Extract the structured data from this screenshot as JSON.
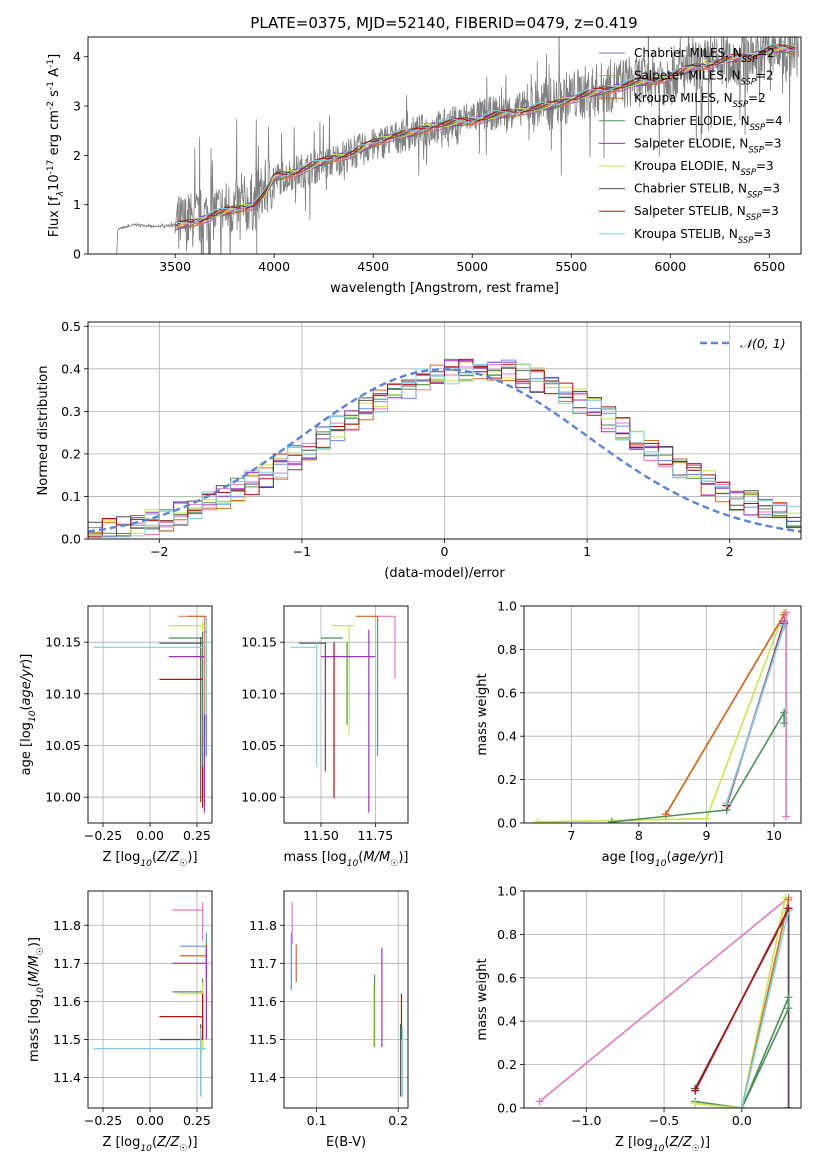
{
  "figure": {
    "title": "PLATE=0375, MJD=52140, FIBERID=0479, z=0.419"
  },
  "colors": {
    "data_gray": "#808080",
    "Chabrier MILES": "#9467bd",
    "Salpeter MILES": "#fa8072",
    "Kroupa MILES": "#d2691e",
    "Chabrier ELODIE": "#4e8f5a",
    "Salpeter ELODIE": "#9a32c8",
    "Kroupa ELODIE": "#c8e650",
    "Chabrier STELIB": "#505050",
    "Salpeter STELIB": "#b01010",
    "Kroupa STELIB": "#80d0e0",
    "gauss": "#5b84d6",
    "pink": "#e377c2",
    "blue": "#6a8ee8"
  },
  "chart_data": [
    {
      "id": "spectrum",
      "type": "line",
      "xlabel": "wavelength [Angstrom, rest frame]",
      "ylabel": "Flux [f$_\\lambda$10$^{-17}$ erg cm$^{-2}$ s$^{-1}$ A$^{-1}$]",
      "xlim": [
        3060,
        6660
      ],
      "ylim": [
        0,
        4.4
      ],
      "xticks": [
        3500,
        4000,
        4500,
        5000,
        5500,
        6000,
        6500
      ],
      "yticks": [
        0,
        1,
        2,
        3,
        4
      ],
      "legend_position": "top-right",
      "legend": [
        {
          "label": "Chabrier MILES, N",
          "sub": "SSP",
          "tail": "=2"
        },
        {
          "label": "Salpeter MILES, N",
          "sub": "SSP",
          "tail": "=2"
        },
        {
          "label": "Kroupa MILES, N",
          "sub": "SSP",
          "tail": "=2"
        },
        {
          "label": "Chabrier ELODIE, N",
          "sub": "SSP",
          "tail": "=4"
        },
        {
          "label": "Salpeter ELODIE, N",
          "sub": "SSP",
          "tail": "=3"
        },
        {
          "label": "Kroupa ELODIE, N",
          "sub": "SSP",
          "tail": "=3"
        },
        {
          "label": "Chabrier STELIB, N",
          "sub": "SSP",
          "tail": "=3"
        },
        {
          "label": "Salpeter STELIB, N",
          "sub": "SSP",
          "tail": "=3"
        },
        {
          "label": "Kroupa STELIB, N",
          "sub": "SSP",
          "tail": "=3"
        }
      ],
      "data_curve": {
        "wavelength": [
          3210,
          3300,
          3400,
          3500,
          3600,
          3700,
          3800,
          3900,
          3950,
          4000,
          4100,
          4200,
          4300,
          4400,
          4500,
          4600,
          4700,
          4800,
          4900,
          5000,
          5100,
          5200,
          5300,
          5400,
          5500,
          5600,
          5700,
          5800,
          5900,
          6000,
          6100,
          6200,
          6300,
          6400,
          6500
        ],
        "flux": [
          0.5,
          0.6,
          0.55,
          0.6,
          0.7,
          0.85,
          0.95,
          1.05,
          1.3,
          1.5,
          1.65,
          1.75,
          1.9,
          2.05,
          2.2,
          2.35,
          2.45,
          2.55,
          2.65,
          2.8,
          2.85,
          2.9,
          3.0,
          3.05,
          3.2,
          3.3,
          3.4,
          3.5,
          3.55,
          3.65,
          3.75,
          3.85,
          3.9,
          4.0,
          4.1
        ]
      },
      "model_curve": {
        "wavelength": [
          3500,
          3600,
          3700,
          3800,
          3900,
          3950,
          4000,
          4100,
          4200,
          4300,
          4400,
          4500,
          4600,
          4700,
          4800,
          4900,
          5000,
          5100,
          5200,
          5300,
          5400,
          5500,
          5600,
          5700,
          5800,
          5900,
          6000,
          6100,
          6200,
          6300,
          6400,
          6500
        ],
        "flux": [
          0.55,
          0.65,
          0.8,
          0.9,
          1.0,
          1.2,
          1.55,
          1.65,
          1.8,
          1.95,
          2.05,
          2.25,
          2.4,
          2.45,
          2.6,
          2.65,
          2.7,
          2.8,
          2.85,
          2.95,
          3.0,
          3.15,
          3.25,
          3.35,
          3.45,
          3.5,
          3.6,
          3.75,
          3.85,
          3.95,
          4.0,
          4.15
        ]
      }
    },
    {
      "id": "residuals",
      "type": "line",
      "xlabel": "(data-model)/error",
      "ylabel": "Normed distribution",
      "xlim": [
        -2.5,
        2.5
      ],
      "ylim": [
        0,
        0.51
      ],
      "xticks": [
        -2,
        -1,
        0,
        1,
        2
      ],
      "yticks": [
        0.0,
        0.1,
        0.2,
        0.3,
        0.4,
        0.5
      ],
      "grid": true,
      "legend_position": "top-right",
      "legend": [
        {
          "label": "$\\mathcal{N}(0, 1)$"
        }
      ],
      "gauss": {
        "mean": 0,
        "sigma": 1
      }
    },
    {
      "id": "age_vs_Z",
      "type": "scatter",
      "xlabel": "Z [log$_{10}$($Z/Z_\\odot$)]",
      "ylabel": "age  [log$_{10}$($age/yr$)]",
      "xlim": [
        -0.33,
        0.33
      ],
      "ylim": [
        9.975,
        10.185
      ],
      "xticks": [
        -0.25,
        0.0,
        0.25
      ],
      "yticks": [
        10.0,
        10.05,
        10.1,
        10.15
      ],
      "grid": true
    },
    {
      "id": "age_vs_mass",
      "type": "scatter",
      "xlabel": "mass [log$_{10}$($M/M_\\odot$)]",
      "xlim": [
        11.33,
        11.9
      ],
      "ylim": [
        9.975,
        10.185
      ],
      "xticks": [
        11.5,
        11.75
      ],
      "yticks": [
        10.0,
        10.05,
        10.1,
        10.15
      ],
      "grid": true
    },
    {
      "id": "weight_vs_age",
      "type": "line",
      "xlabel": "age  [log$_{10}$($age/yr$)]",
      "ylabel": "mass weight",
      "xlim": [
        6.3,
        10.4
      ],
      "ylim": [
        0,
        1.0
      ],
      "xticks": [
        7,
        8,
        9,
        10
      ],
      "yticks": [
        0.0,
        0.2,
        0.4,
        0.6,
        0.8,
        1.0
      ],
      "grid": true
    },
    {
      "id": "mass_vs_Z",
      "type": "scatter",
      "xlabel": "Z [log$_{10}$($Z/Z_\\odot$)]",
      "ylabel": "mass [log$_{10}$($M/M_\\odot$)]",
      "xlim": [
        -0.33,
        0.33
      ],
      "ylim": [
        11.32,
        11.89
      ],
      "xticks": [
        -0.25,
        0.0,
        0.25
      ],
      "yticks": [
        11.4,
        11.5,
        11.6,
        11.7,
        11.8
      ],
      "grid": true
    },
    {
      "id": "mass_vs_ebv",
      "type": "scatter",
      "xlabel": "E(B-V)",
      "xlim": [
        0.06,
        0.212
      ],
      "ylim": [
        11.32,
        11.89
      ],
      "xticks": [
        0.1,
        0.2
      ],
      "yticks": [
        11.4,
        11.5,
        11.6,
        11.7,
        11.8
      ],
      "grid": true
    },
    {
      "id": "weight_vs_Z",
      "type": "line",
      "xlabel": "Z [log$_{10}$($Z/Z_\\odot$)]",
      "ylabel": "mass weight",
      "xlim": [
        -1.4,
        0.38
      ],
      "ylim": [
        0,
        1.0
      ],
      "xticks": [
        -1.0,
        -0.5,
        0.0
      ],
      "yticks": [
        0.0,
        0.2,
        0.4,
        0.6,
        0.8,
        1.0
      ],
      "grid": true
    }
  ]
}
